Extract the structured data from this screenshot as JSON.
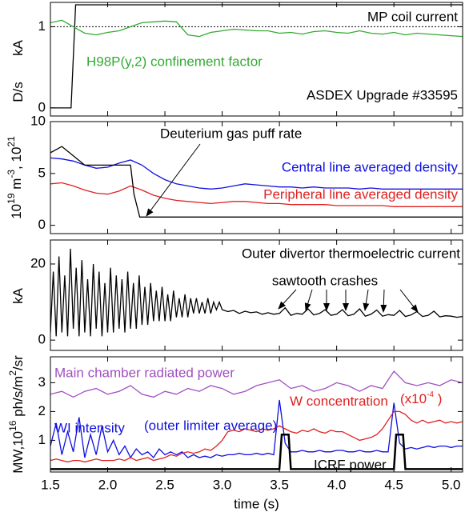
{
  "chart_data": [
    {
      "type": "line",
      "xlim": [
        1.5,
        5.1
      ],
      "ylim": [
        -0.1,
        1.3
      ],
      "yticks": [
        0,
        1
      ],
      "hline": 1,
      "ylabels": [
        [
          {
            "text": "kA"
          }
        ],
        [
          {
            "text": "D/s"
          }
        ]
      ],
      "annotations": [
        {
          "text": "MP coil current",
          "color": "#000000"
        },
        {
          "text": "H98P(y,2) confinement factor",
          "color": "#33aa33"
        },
        {
          "text": "ASDEX Upgrade #33595",
          "color": "#000000"
        }
      ],
      "series": [
        {
          "name": "MP coil current",
          "color": "#000000",
          "x": [
            1.5,
            1.68,
            1.72,
            5.1
          ],
          "values": [
            0,
            0,
            1.27,
            1.27
          ]
        },
        {
          "name": "H98P(y,2) confinement factor",
          "color": "#33aa33",
          "x": [
            1.5,
            1.6,
            1.7,
            1.8,
            1.9,
            2.0,
            2.1,
            2.2,
            2.3,
            2.4,
            2.5,
            2.6,
            2.7,
            2.8,
            2.9,
            3.0,
            3.1,
            3.2,
            3.3,
            3.4,
            3.5,
            3.6,
            3.7,
            3.8,
            3.9,
            4.0,
            4.1,
            4.2,
            4.3,
            4.4,
            4.5,
            4.6,
            4.7,
            4.8,
            4.9,
            5.0,
            5.1
          ],
          "values": [
            1.05,
            1.08,
            1.0,
            0.92,
            0.9,
            0.93,
            0.95,
            1.0,
            1.05,
            1.06,
            1.07,
            1.06,
            0.9,
            0.88,
            0.93,
            0.95,
            0.97,
            0.96,
            0.95,
            0.95,
            0.92,
            0.93,
            0.91,
            0.94,
            0.95,
            0.93,
            0.92,
            0.95,
            0.92,
            0.91,
            0.93,
            0.9,
            0.92,
            0.91,
            0.9,
            0.89,
            0.88
          ]
        }
      ]
    },
    {
      "type": "line",
      "xlim": [
        1.5,
        5.1
      ],
      "ylim": [
        -0.8,
        10
      ],
      "yticks": [
        0,
        5,
        10
      ],
      "ylabels": [
        [
          {
            "text": "10"
          },
          {
            "text": "19",
            "sup": true
          },
          {
            "text": " m"
          },
          {
            "text": "-3",
            "sup": true
          },
          {
            "text": ", 10"
          },
          {
            "text": "21",
            "sup": true
          }
        ]
      ],
      "annotations": [
        {
          "text": "Deuterium gas puff rate",
          "color": "#000000"
        },
        {
          "text": "Central line averaged density",
          "color": "#1010e0"
        },
        {
          "text": "Peripheral line averaged density",
          "color": "#e02020"
        }
      ],
      "series": [
        {
          "name": "Central line averaged density",
          "color": "#1010e0",
          "x": [
            1.5,
            1.6,
            1.7,
            1.8,
            1.9,
            2.0,
            2.1,
            2.2,
            2.3,
            2.4,
            2.5,
            2.6,
            2.7,
            2.8,
            2.9,
            3.0,
            3.1,
            3.2,
            3.3,
            3.4,
            3.5,
            3.6,
            3.7,
            3.8,
            3.9,
            4.0,
            4.1,
            4.2,
            4.3,
            4.4,
            4.5,
            4.6,
            4.7,
            4.8,
            4.9,
            5.0,
            5.1
          ],
          "values": [
            6.5,
            6.4,
            6.2,
            5.8,
            5.5,
            5.6,
            6.0,
            6.3,
            5.8,
            5.0,
            4.4,
            4.0,
            3.8,
            3.6,
            3.5,
            3.6,
            3.8,
            4.0,
            3.9,
            3.8,
            3.7,
            3.7,
            3.6,
            3.7,
            3.6,
            3.6,
            3.6,
            3.5,
            3.6,
            3.5,
            3.5,
            3.5,
            3.5,
            3.5,
            3.5,
            3.5,
            3.5
          ]
        },
        {
          "name": "Peripheral line averaged density",
          "color": "#e02020",
          "x": [
            1.5,
            1.6,
            1.7,
            1.8,
            1.9,
            2.0,
            2.1,
            2.2,
            2.3,
            2.4,
            2.5,
            2.6,
            2.7,
            2.8,
            2.9,
            3.0,
            3.1,
            3.2,
            3.3,
            3.4,
            3.5,
            3.6,
            3.7,
            3.8,
            3.9,
            4.0,
            4.1,
            4.2,
            4.3,
            4.4,
            4.5,
            4.6,
            4.7,
            4.8,
            4.9,
            5.0,
            5.1
          ],
          "values": [
            4.0,
            4.1,
            3.8,
            3.4,
            3.1,
            3.0,
            3.3,
            3.8,
            3.4,
            2.9,
            2.6,
            2.4,
            2.3,
            2.2,
            2.1,
            2.2,
            2.3,
            2.3,
            2.2,
            2.1,
            2.1,
            2.0,
            2.0,
            2.0,
            2.0,
            1.9,
            1.9,
            1.9,
            1.9,
            1.9,
            1.8,
            1.8,
            1.8,
            1.8,
            1.8,
            1.8,
            1.8
          ]
        },
        {
          "name": "Deuterium gas puff rate",
          "color": "#000000",
          "x": [
            1.5,
            1.6,
            1.8,
            2.2,
            2.23,
            2.28,
            5.1
          ],
          "values": [
            7,
            7.6,
            5.8,
            5.8,
            3,
            0.8,
            0.8
          ]
        }
      ]
    },
    {
      "type": "line",
      "xlim": [
        1.5,
        5.1
      ],
      "ylim": [
        -2.7,
        26.3
      ],
      "yticks": [
        0,
        20
      ],
      "ylabels": [
        [
          {
            "text": "kA"
          }
        ]
      ],
      "annotations": [
        {
          "text": "Outer divertor thermoelectric current",
          "color": "#000000"
        },
        {
          "text": "sawtooth crashes",
          "color": "#000000"
        }
      ],
      "series": [
        {
          "name": "Outer divertor thermoelectric current",
          "color": "#000000",
          "x": [
            1.5,
            1.525,
            1.55,
            1.575,
            1.6,
            1.625,
            1.65,
            1.675,
            1.7,
            1.725,
            1.75,
            1.775,
            1.8,
            1.825,
            1.85,
            1.875,
            1.9,
            1.925,
            1.95,
            1.975,
            2.0,
            2.025,
            2.05,
            2.075,
            2.1,
            2.125,
            2.15,
            2.175,
            2.2,
            2.225,
            2.25,
            2.275,
            2.3,
            2.325,
            2.35,
            2.375,
            2.4,
            2.425,
            2.45,
            2.475,
            2.5,
            2.525,
            2.55,
            2.575,
            2.6,
            2.625,
            2.65,
            2.675,
            2.7,
            2.725,
            2.75,
            2.775,
            2.8,
            2.825,
            2.85,
            2.875,
            2.9,
            2.925,
            2.95,
            2.975,
            3.0,
            3.05,
            3.1,
            3.15,
            3.2,
            3.25,
            3.3,
            3.35,
            3.4,
            3.45,
            3.5,
            3.55,
            3.6,
            3.65,
            3.7,
            3.75,
            3.8,
            3.85,
            3.9,
            3.95,
            4.0,
            4.05,
            4.1,
            4.15,
            4.2,
            4.25,
            4.3,
            4.35,
            4.4,
            4.45,
            4.5,
            4.55,
            4.6,
            4.65,
            4.7,
            4.75,
            4.8,
            4.85,
            4.9,
            4.95,
            5.0,
            5.05,
            5.1
          ],
          "values": [
            2,
            18,
            1,
            22,
            2,
            17,
            1,
            24,
            3,
            19,
            1,
            21,
            2,
            16,
            1,
            20,
            3,
            18,
            1,
            15,
            2,
            19,
            2,
            17,
            3,
            16,
            2,
            18,
            3,
            15,
            3,
            17,
            4,
            14,
            4,
            15,
            5,
            13,
            5,
            14,
            5,
            12,
            5,
            13,
            6,
            11,
            6,
            12,
            6,
            11,
            7,
            11,
            7,
            10,
            7,
            11,
            7,
            10,
            8,
            10,
            8,
            7.5,
            7.8,
            7,
            7.6,
            7.2,
            7.4,
            6.8,
            7.2,
            6.8,
            7,
            8.5,
            6.5,
            7,
            6.8,
            8.2,
            6.6,
            7,
            8,
            6.5,
            6.8,
            8,
            6.4,
            6.8,
            8.2,
            6.3,
            6.8,
            7.9,
            6.3,
            6.7,
            6.5,
            7.8,
            6.2,
            6.6,
            7.5,
            6.2,
            6.5,
            7.6,
            6.1,
            6.4,
            6.3,
            6.0,
            6.2
          ]
        }
      ]
    },
    {
      "type": "line",
      "xlim": [
        1.5,
        5.1
      ],
      "ylim": [
        -0.1,
        3.9
      ],
      "yticks": [
        1,
        2,
        3
      ],
      "xticks": [
        1.5,
        {
          "value": 2,
          "label": "2.0"
        },
        2.5,
        {
          "value": 3,
          "label": "3.0"
        },
        3.5,
        {
          "value": 4,
          "label": "4.0"
        },
        4.5,
        {
          "value": 5,
          "label": "5.0"
        }
      ],
      "xlabel": "time (s)",
      "ylabels": [
        [
          {
            "text": "MW,10"
          },
          {
            "text": "16",
            "sup": true
          },
          {
            "text": " ph/s/m"
          },
          {
            "text": "2",
            "sup": true
          },
          {
            "text": "/sr"
          }
        ]
      ],
      "annotations": [
        {
          "text": "Main chamber radiated power",
          "color": "#a050c0"
        },
        {
          "parts": [
            {
              "text": "W concentration"
            }
          ],
          "color": "#e02020"
        },
        {
          "parts": [
            {
              "text": "(x10"
            },
            {
              "text": "-4",
              "sup": true
            },
            {
              "text": " )"
            }
          ],
          "color": "#e02020"
        },
        {
          "text": "WI intensity",
          "color": "#1010e0"
        },
        {
          "text": "(outer limiter average)",
          "color": "#1010e0"
        },
        {
          "text": "ICRF power",
          "color": "#000000"
        }
      ],
      "series": [
        {
          "name": "Main chamber radiated power",
          "color": "#a050c0",
          "x": [
            1.5,
            1.6,
            1.7,
            1.8,
            1.9,
            2.0,
            2.1,
            2.2,
            2.3,
            2.4,
            2.5,
            2.6,
            2.7,
            2.8,
            2.9,
            3.0,
            3.1,
            3.2,
            3.3,
            3.4,
            3.5,
            3.6,
            3.7,
            3.8,
            3.9,
            4.0,
            4.1,
            4.2,
            4.3,
            4.4,
            4.5,
            4.6,
            4.7,
            4.8,
            4.9,
            5.0,
            5.1
          ],
          "values": [
            2.6,
            2.7,
            2.5,
            2.7,
            2.8,
            2.6,
            2.7,
            2.9,
            2.6,
            2.5,
            2.7,
            2.6,
            2.8,
            2.7,
            2.9,
            2.8,
            2.6,
            2.7,
            2.9,
            3.0,
            3.1,
            2.8,
            2.9,
            2.7,
            2.8,
            3.0,
            2.9,
            2.7,
            2.9,
            2.8,
            3.4,
            3.0,
            2.9,
            3.0,
            2.9,
            3.1,
            3.0
          ]
        },
        {
          "name": "WI intensity",
          "color": "#1010e0",
          "x": [
            1.5,
            1.55,
            1.6,
            1.65,
            1.7,
            1.75,
            1.8,
            1.85,
            1.9,
            1.95,
            2.0,
            2.05,
            2.1,
            2.15,
            2.2,
            2.25,
            2.3,
            2.35,
            2.4,
            2.45,
            2.5,
            2.55,
            2.6,
            2.65,
            2.7,
            2.75,
            2.8,
            2.85,
            2.9,
            2.95,
            3.0,
            3.05,
            3.1,
            3.15,
            3.2,
            3.25,
            3.3,
            3.35,
            3.4,
            3.45,
            3.5,
            3.55,
            3.6,
            3.65,
            3.7,
            3.75,
            3.8,
            3.85,
            3.9,
            3.95,
            4.0,
            4.05,
            4.1,
            4.15,
            4.2,
            4.25,
            4.3,
            4.35,
            4.4,
            4.45,
            4.5,
            4.55,
            4.6,
            4.65,
            4.7,
            4.75,
            4.8,
            4.85,
            4.9,
            4.95,
            5.0,
            5.05,
            5.1
          ],
          "values": [
            0.8,
            1.6,
            0.5,
            1.3,
            0.6,
            1.8,
            0.4,
            1.2,
            0.5,
            1.5,
            0.6,
            1.0,
            0.5,
            0.8,
            0.4,
            0.7,
            0.5,
            0.6,
            0.4,
            0.7,
            0.5,
            0.6,
            0.5,
            0.6,
            0.4,
            0.5,
            0.4,
            0.45,
            0.4,
            0.5,
            0.45,
            0.5,
            0.5,
            0.55,
            0.5,
            0.5,
            0.55,
            0.5,
            0.55,
            0.5,
            2.4,
            0.9,
            0.6,
            0.6,
            0.65,
            0.6,
            0.6,
            0.65,
            0.6,
            0.6,
            0.65,
            0.65,
            0.6,
            0.6,
            0.65,
            0.6,
            0.6,
            0.65,
            0.6,
            0.6,
            2.3,
            0.9,
            0.7,
            0.75,
            0.7,
            0.75,
            0.8,
            0.75,
            0.8,
            0.8,
            0.75,
            0.8,
            0.8
          ]
        },
        {
          "name": "W concentration",
          "color": "#e02020",
          "x": [
            1.5,
            1.55,
            1.6,
            1.65,
            1.7,
            1.75,
            1.8,
            1.85,
            1.9,
            1.95,
            2.0,
            2.05,
            2.1,
            2.15,
            2.2,
            2.25,
            2.3,
            2.35,
            2.4,
            2.45,
            2.5,
            2.55,
            2.6,
            2.65,
            2.7,
            2.75,
            2.8,
            2.85,
            2.9,
            2.95,
            3.0,
            3.05,
            3.1,
            3.15,
            3.2,
            3.25,
            3.3,
            3.35,
            3.4,
            3.45,
            3.5,
            3.55,
            3.6,
            3.65,
            3.7,
            3.75,
            3.8,
            3.85,
            3.9,
            3.95,
            4.0,
            4.05,
            4.1,
            4.15,
            4.2,
            4.25,
            4.3,
            4.35,
            4.4,
            4.45,
            4.5,
            4.55,
            4.6,
            4.65,
            4.7,
            4.75,
            4.8,
            4.85,
            4.9,
            4.95,
            5.0,
            5.05,
            5.1
          ],
          "values": [
            0.3,
            0.35,
            0.3,
            0.25,
            0.3,
            0.3,
            0.25,
            0.3,
            0.35,
            0.3,
            0.3,
            0.3,
            0.35,
            0.3,
            0.4,
            0.3,
            0.35,
            0.4,
            0.3,
            0.35,
            0.4,
            0.5,
            0.45,
            0.55,
            0.6,
            0.55,
            0.6,
            0.7,
            0.65,
            0.8,
            1.0,
            1.3,
            1.35,
            1.3,
            1.4,
            1.35,
            1.3,
            1.4,
            1.35,
            1.4,
            1.5,
            1.4,
            1.3,
            1.25,
            1.35,
            1.3,
            1.4,
            1.3,
            1.25,
            1.35,
            1.3,
            1.3,
            1.2,
            1.1,
            1.0,
            1.05,
            1.1,
            1.2,
            1.4,
            1.7,
            2.0,
            2.0,
            1.9,
            1.7,
            1.6,
            1.7,
            1.6,
            1.65,
            1.7,
            1.6,
            1.65,
            1.6,
            1.65
          ]
        },
        {
          "name": "ICRF power",
          "color": "#000000",
          "x": [
            1.5,
            3.5,
            3.52,
            3.58,
            3.6,
            4.5,
            4.52,
            4.58,
            4.6,
            5.1
          ],
          "values": [
            0,
            0,
            1.2,
            1.2,
            0,
            0,
            1.2,
            1.2,
            0,
            0
          ]
        }
      ]
    }
  ]
}
